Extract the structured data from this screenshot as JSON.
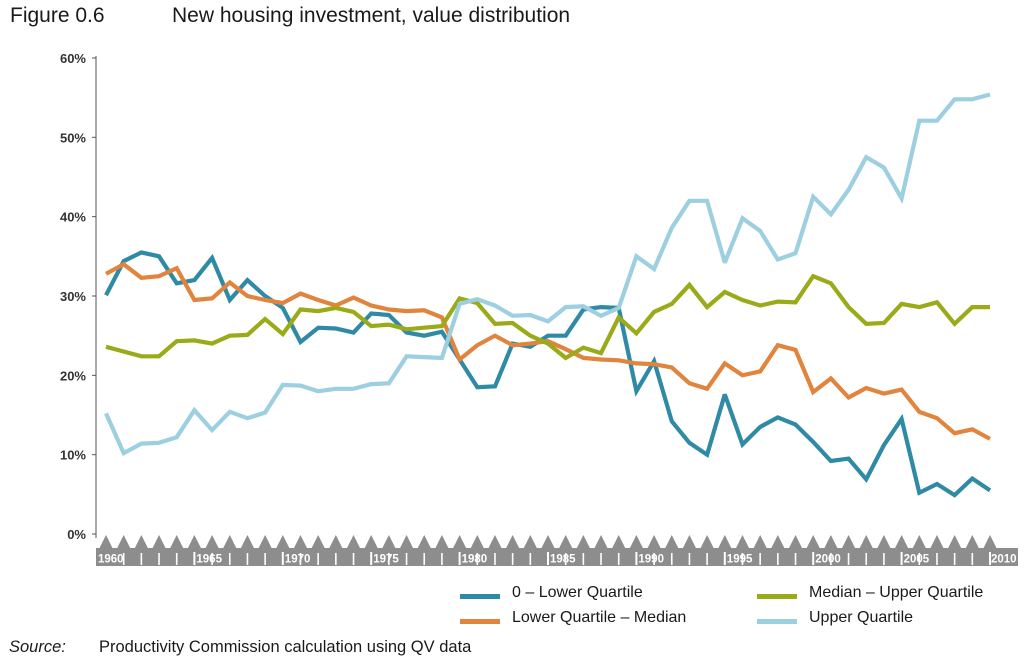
{
  "figure": {
    "number": "Figure 0.6",
    "title": "New housing investment, value distribution"
  },
  "source": {
    "label": "Source:",
    "text": "Productivity Commission calculation using QV data"
  },
  "chart_data": {
    "type": "line",
    "title": "New housing investment, value distribution",
    "xlabel": "",
    "ylabel": "",
    "x": [
      1960,
      1961,
      1962,
      1963,
      1964,
      1965,
      1966,
      1967,
      1968,
      1969,
      1970,
      1971,
      1972,
      1973,
      1974,
      1975,
      1976,
      1977,
      1978,
      1979,
      1980,
      1981,
      1982,
      1983,
      1984,
      1985,
      1986,
      1987,
      1988,
      1989,
      1990,
      1991,
      1992,
      1993,
      1994,
      1995,
      1996,
      1997,
      1998,
      1999,
      2000,
      2001,
      2002,
      2003,
      2004,
      2005,
      2006,
      2007,
      2008,
      2009,
      2010
    ],
    "x_ticks": [
      1960,
      1965,
      1970,
      1975,
      1980,
      1985,
      1990,
      1995,
      2000,
      2005,
      2010
    ],
    "xlim": [
      1960,
      2010
    ],
    "ylim": [
      0,
      60
    ],
    "y_ticks": [
      0,
      10,
      20,
      30,
      40,
      50,
      60
    ],
    "y_tick_labels": [
      "0%",
      "10%",
      "20%",
      "30%",
      "40%",
      "50%",
      "60%"
    ],
    "grid": false,
    "legend_position": "bottom-right",
    "series": [
      {
        "name": "0 – Lower Quartile",
        "color": "#2f8aa6",
        "values": [
          30.1,
          34.4,
          35.5,
          35.0,
          31.6,
          32.0,
          34.8,
          29.5,
          32.0,
          30.0,
          28.5,
          24.2,
          26.0,
          25.9,
          25.4,
          27.8,
          27.6,
          25.4,
          25.0,
          25.5,
          22.0,
          18.5,
          18.6,
          24.0,
          23.6,
          25.0,
          25.0,
          28.3,
          28.6,
          28.5,
          18.0,
          21.8,
          14.2,
          11.5,
          10.0,
          17.6,
          11.3,
          13.5,
          14.7,
          13.8,
          11.6,
          9.2,
          9.5,
          6.9,
          11.2,
          14.5,
          5.2,
          6.3,
          4.9,
          7.0,
          5.5
        ]
      },
      {
        "name": "Lower Quartile – Median",
        "color": "#e0843e",
        "values": [
          32.8,
          34.0,
          32.3,
          32.5,
          33.5,
          29.5,
          29.7,
          31.7,
          30.0,
          29.5,
          29.1,
          30.3,
          29.5,
          28.8,
          29.8,
          28.8,
          28.3,
          28.1,
          28.2,
          27.3,
          22.0,
          23.8,
          25.0,
          23.8,
          24.0,
          24.3,
          23.3,
          22.2,
          22.0,
          21.9,
          21.5,
          21.4,
          21.0,
          19.0,
          18.3,
          21.5,
          20.0,
          20.5,
          23.8,
          23.2,
          17.9,
          19.6,
          17.2,
          18.4,
          17.7,
          18.2,
          15.4,
          14.6,
          12.7,
          13.2,
          12.0
        ]
      },
      {
        "name": "Median – Upper Quartile",
        "color": "#9aaa18",
        "values": [
          23.6,
          23.0,
          22.4,
          22.4,
          24.3,
          24.4,
          24.0,
          25.0,
          25.1,
          27.1,
          25.2,
          28.3,
          28.1,
          28.5,
          28.0,
          26.2,
          26.4,
          25.8,
          26.0,
          26.2,
          29.7,
          29.1,
          26.5,
          26.6,
          25.0,
          24.0,
          22.2,
          23.5,
          22.8,
          27.3,
          25.3,
          28.0,
          29.0,
          31.4,
          28.6,
          30.5,
          29.5,
          28.8,
          29.3,
          29.2,
          32.5,
          31.6,
          28.6,
          26.5,
          26.6,
          29.0,
          28.6,
          29.2,
          26.5,
          28.6,
          28.6
        ]
      },
      {
        "name": "Upper Quartile",
        "color": "#9ccfe0",
        "values": [
          15.2,
          10.2,
          11.4,
          11.5,
          12.2,
          15.6,
          13.1,
          15.4,
          14.6,
          15.3,
          18.8,
          18.7,
          18.0,
          18.3,
          18.3,
          18.9,
          19.0,
          22.4,
          22.3,
          22.2,
          29.0,
          29.6,
          28.8,
          27.5,
          27.6,
          26.8,
          28.6,
          28.7,
          27.5,
          28.5,
          35.0,
          33.4,
          38.6,
          42.0,
          42.0,
          34.2,
          39.8,
          38.2,
          34.6,
          35.4,
          42.5,
          40.3,
          43.4,
          47.5,
          46.2,
          42.3,
          52.1,
          52.1,
          54.8,
          54.8,
          55.4
        ]
      }
    ]
  }
}
